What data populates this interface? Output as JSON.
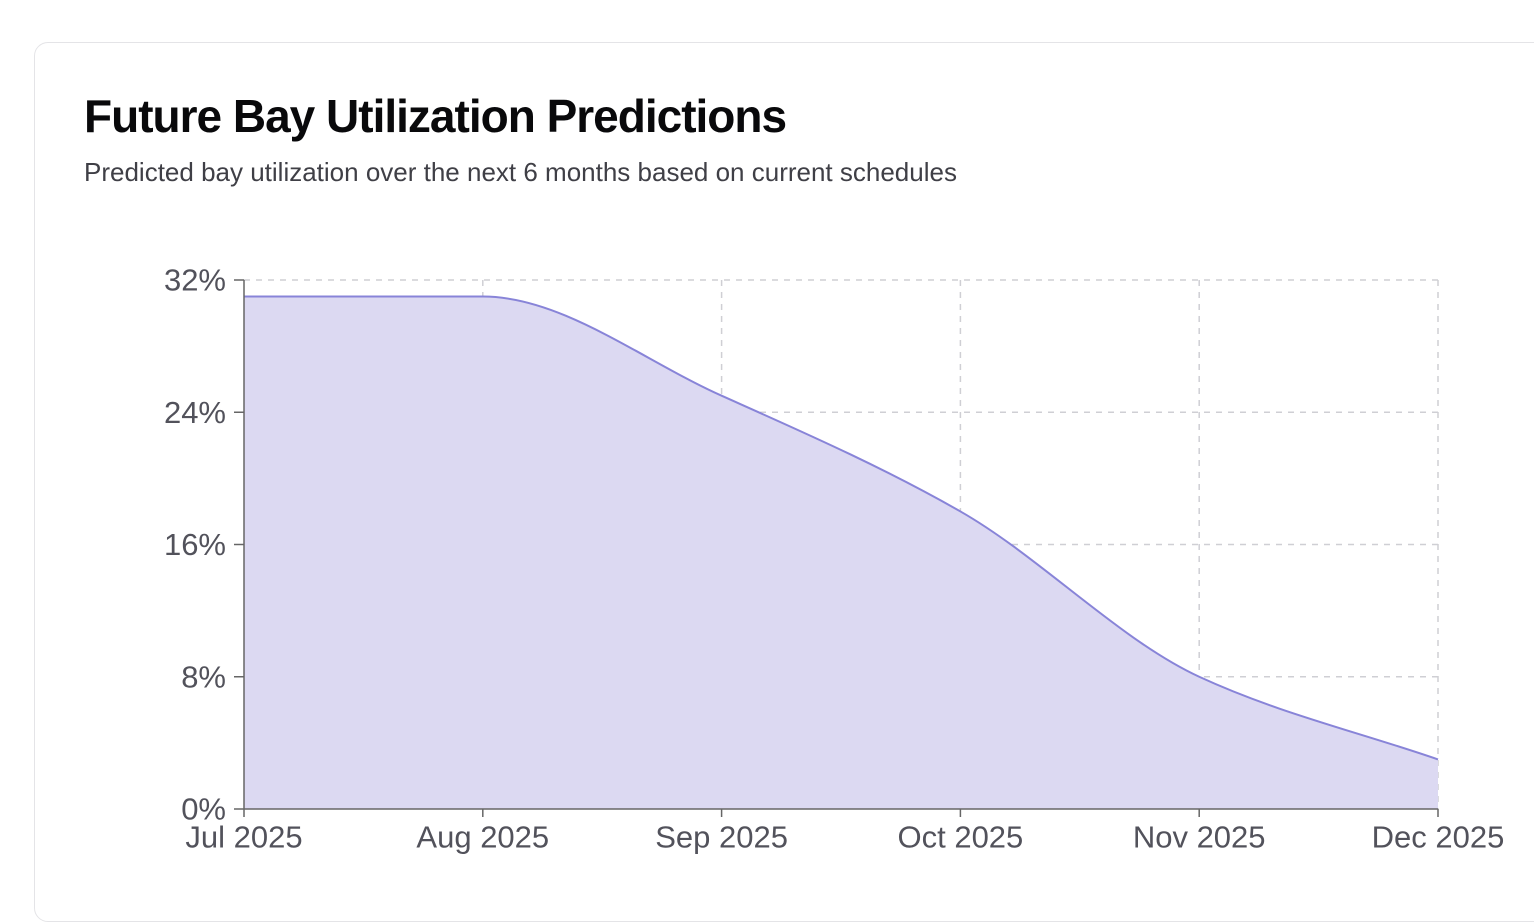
{
  "card": {
    "title": "Future Bay Utilization Predictions",
    "subtitle": "Predicted bay utilization over the next 6 months based on current schedules"
  },
  "chart_data": {
    "type": "area",
    "title": "Future Bay Utilization Predictions",
    "subtitle": "Predicted bay utilization over the next 6 months based on current schedules",
    "xlabel": "",
    "ylabel": "",
    "categories": [
      "Jul 2025",
      "Aug 2025",
      "Sep 2025",
      "Oct 2025",
      "Nov 2025",
      "Dec 2025"
    ],
    "series": [
      {
        "values": [
          31,
          31,
          25,
          18,
          8,
          3
        ]
      }
    ],
    "ylim": [
      0,
      32
    ],
    "yticks": [
      0,
      8,
      16,
      24,
      32
    ],
    "ytick_labels": [
      "0%",
      "8%",
      "16%",
      "24%",
      "32%"
    ],
    "grid": true,
    "line_color": "#8884d8",
    "fill_color": "#dcd9f2",
    "curve": "monotone"
  }
}
